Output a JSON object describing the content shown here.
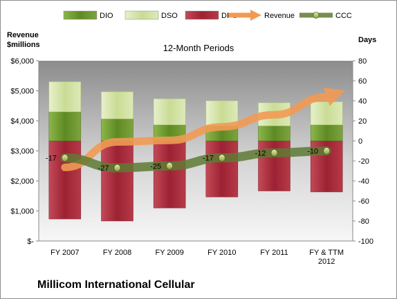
{
  "chart_data": {
    "type": "bar",
    "subtitle": "12-Month Periods",
    "company": "Millicom International Cellular",
    "left_axis": {
      "label_line1": "Revenue",
      "label_line2": "$millions",
      "range": [
        0,
        6000
      ],
      "ticks": [
        0,
        1000,
        2000,
        3000,
        4000,
        5000,
        6000
      ],
      "tick_labels": [
        "$-",
        "$1,000",
        "$2,000",
        "$3,000",
        "$4,000",
        "$5,000",
        "$6,000"
      ]
    },
    "right_axis": {
      "label": "Days",
      "range": [
        -100,
        80
      ],
      "ticks": [
        -100,
        -80,
        -60,
        -40,
        -20,
        0,
        20,
        40,
        60,
        80
      ],
      "tick_labels": [
        "-100",
        "-80",
        "-60",
        "-40",
        "-20",
        "0",
        "20",
        "40",
        "60",
        "80"
      ]
    },
    "categories": [
      "FY 2007",
      "FY 2008",
      "FY 2009",
      "FY 2010",
      "FY 2011",
      "FY & TTM\n2012"
    ],
    "legend": [
      "DIO",
      "DSO",
      "DPO",
      "Revenue",
      "CCC"
    ],
    "legend_position": "top",
    "grid": false,
    "series": [
      {
        "name": "DPO",
        "axis": "right",
        "color": "#a0283a",
        "bottom": [
          -78,
          -80,
          -67,
          -56,
          -50,
          -51
        ],
        "top": [
          0,
          0,
          0,
          0,
          0,
          0
        ]
      },
      {
        "name": "DIO",
        "axis": "right",
        "color": "#6f9a2e",
        "values": [
          29,
          22,
          16,
          15,
          15,
          16
        ]
      },
      {
        "name": "DSO",
        "axis": "right",
        "color": "#d8e6b0",
        "values": [
          30,
          27,
          26,
          25,
          23,
          23
        ]
      },
      {
        "name": "Revenue",
        "axis": "left",
        "color": "#f19a54",
        "type": "arrow",
        "values": [
          2450,
          3300,
          3350,
          3800,
          4200,
          4800
        ]
      },
      {
        "name": "CCC",
        "axis": "right",
        "color": "#5f7a34",
        "type": "line",
        "values": [
          -17,
          -27,
          -25,
          -17,
          -12,
          -10
        ],
        "data_labels": [
          "-17",
          "-27",
          "-25",
          "-17",
          "-12",
          "-10"
        ]
      }
    ]
  }
}
